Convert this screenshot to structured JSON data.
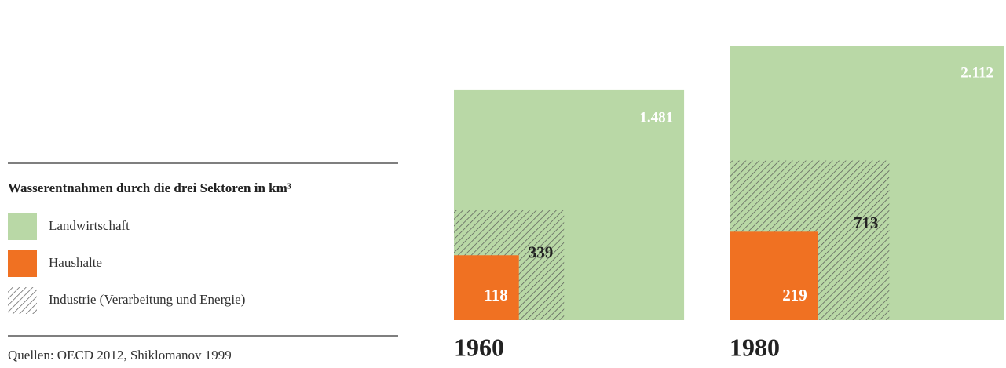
{
  "chart_data": {
    "type": "area-squares",
    "title": "Wasserentnahmen durch die drei Sektoren in km³",
    "source": "Quellen: OECD 2012, Shiklomanov 1999",
    "categories": [
      "1960",
      "1980"
    ],
    "series": [
      {
        "name": "Landwirtschaft",
        "color": "#b9d8a6",
        "values": [
          1481,
          2112
        ],
        "value_labels": [
          "1.481",
          "2.112"
        ]
      },
      {
        "name": "Industrie (Verarbeitung und Energie)",
        "color": "#555555",
        "values": [
          339,
          713
        ]
      },
      {
        "name": "Haushalte",
        "color": "#f07122",
        "values": [
          118,
          219
        ]
      }
    ]
  }
}
